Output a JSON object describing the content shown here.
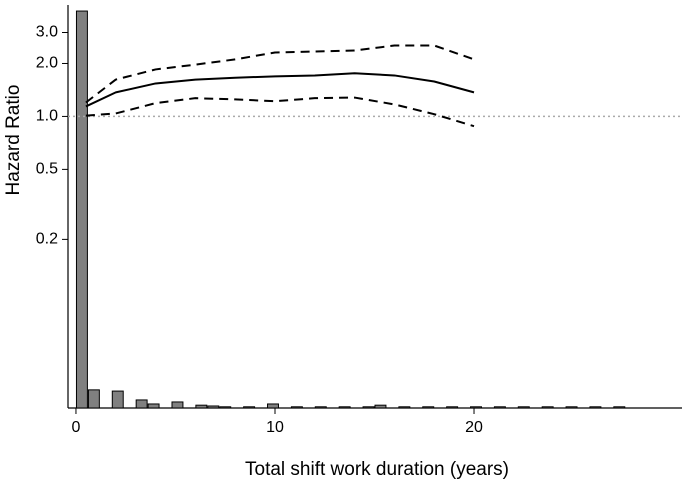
{
  "chart_data": [
    {
      "type": "line",
      "y_label": "Hazard Ratio",
      "x_label": "Total shift work duration (years)",
      "x": [
        0.5,
        2,
        4,
        6,
        8,
        10,
        12,
        14,
        16,
        18,
        20
      ],
      "series": [
        {
          "color": "#000000",
          "dash": false,
          "values": [
            1.14,
            1.37,
            1.54,
            1.62,
            1.66,
            1.69,
            1.71,
            1.76,
            1.71,
            1.58,
            1.37
          ]
        },
        {
          "color": "#000000",
          "dash": true,
          "values": [
            1.2,
            1.62,
            1.85,
            1.97,
            2.11,
            2.31,
            2.34,
            2.37,
            2.53,
            2.53,
            2.11
          ]
        },
        {
          "color": "#000000",
          "dash": true,
          "values": [
            1.01,
            1.04,
            1.19,
            1.27,
            1.25,
            1.22,
            1.27,
            1.28,
            1.17,
            1.03,
            0.88
          ]
        }
      ],
      "log_y": true,
      "xlim": [
        -0.4,
        30.45
      ],
      "xticks": [
        0,
        10,
        20
      ],
      "ylim": [
        0.022,
        4.3
      ],
      "yticks": [
        {
          "value": 3,
          "label": "3.0"
        },
        {
          "value": 2,
          "label": "2.0"
        },
        {
          "value": 1,
          "label": "1.0"
        },
        0.5,
        0.2
      ],
      "refline": 1,
      "refline_color": "#aaaaaa"
    },
    {
      "type": "histogram",
      "color": "#808080",
      "bins": [
        0,
        0.6,
        1.2,
        1.8,
        2.4,
        3,
        3.6,
        4.2,
        4.8,
        5.4,
        6,
        6.6,
        7.2,
        7.8,
        8.4,
        9,
        9.6,
        10.2,
        10.8,
        11.4,
        12,
        12.6,
        13.2,
        13.8,
        14.4,
        15,
        15.6,
        16.2,
        16.8,
        17.4,
        18,
        18.6,
        19.2,
        19.8,
        20.4,
        21,
        21.6,
        22.2,
        22.8,
        23.4,
        24,
        24.6,
        25.2,
        25.8,
        26.4,
        27,
        27.6,
        28.2
      ],
      "counts": [
        98.5,
        4.5,
        0,
        4.2,
        0,
        2.0,
        1.0,
        0,
        1.5,
        0,
        0.7,
        0.5,
        0.3,
        0,
        0.3,
        0,
        1.0,
        0,
        0.3,
        0,
        0.3,
        0,
        0.3,
        0,
        0.3,
        0.7,
        0,
        0.3,
        0,
        0.3,
        0,
        0.3,
        0,
        0.3,
        0,
        0.3,
        0,
        0.3,
        0,
        0.3,
        0,
        0.3,
        0,
        0.3,
        0,
        0.3,
        0
      ],
      "xlim": [
        -0.4,
        30.45
      ],
      "ylim": [
        0,
        100
      ]
    }
  ]
}
